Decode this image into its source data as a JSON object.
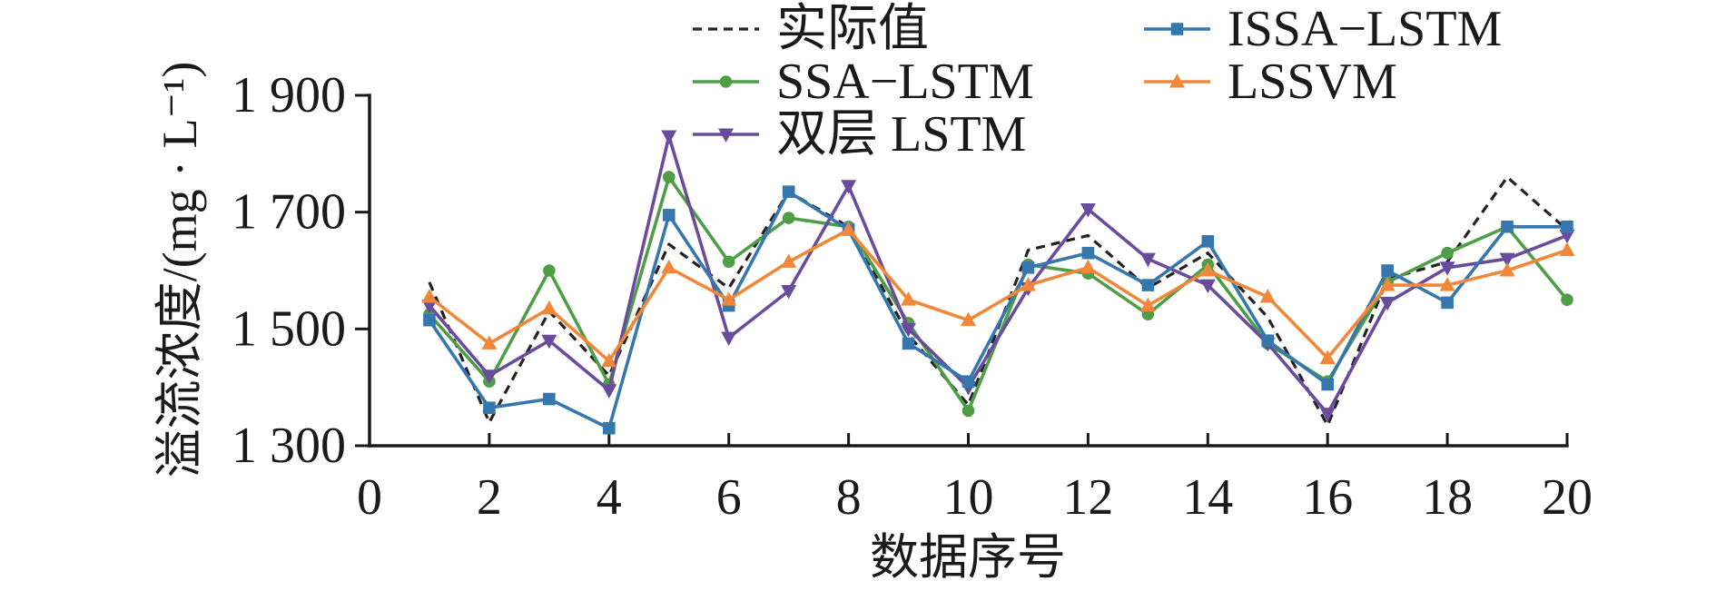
{
  "chart_data": {
    "type": "line",
    "xlabel": "数据序号",
    "ylabel": "溢流浓度/(mg · L⁻¹)",
    "xlim": [
      0,
      20
    ],
    "ylim": [
      1300,
      1900
    ],
    "xticks": [
      0,
      2,
      4,
      6,
      8,
      10,
      12,
      14,
      16,
      18,
      20
    ],
    "xtick_labels": [
      "0",
      "2",
      "4",
      "6",
      "8",
      "10",
      "12",
      "14",
      "16",
      "18",
      "20"
    ],
    "yticks": [
      1300,
      1500,
      1700,
      1900
    ],
    "ytick_labels": [
      "1 300",
      "1 500",
      "1 700",
      "1 900"
    ],
    "grid": false,
    "legend": "top, two columns",
    "x": [
      1,
      2,
      3,
      4,
      5,
      6,
      7,
      8,
      9,
      10,
      11,
      12,
      13,
      14,
      15,
      16,
      17,
      18,
      19,
      20
    ],
    "series": [
      {
        "name": "实际值",
        "color": "#222222",
        "style": "dashed",
        "marker": "none",
        "values": [
          1580,
          1340,
          1530,
          1420,
          1645,
          1570,
          1735,
          1675,
          1490,
          1370,
          1635,
          1660,
          1570,
          1630,
          1520,
          1335,
          1585,
          1615,
          1760,
          1670
        ]
      },
      {
        "name": "SSA−LSTM",
        "color": "#4f9e47",
        "style": "solid",
        "marker": "circle",
        "values": [
          1525,
          1410,
          1600,
          1405,
          1760,
          1615,
          1690,
          1675,
          1510,
          1360,
          1610,
          1595,
          1525,
          1610,
          1475,
          1410,
          1580,
          1630,
          1675,
          1550
        ]
      },
      {
        "name": "双层 LSTM",
        "color": "#6a4c9c",
        "style": "solid",
        "marker": "triangle-down",
        "values": [
          1540,
          1420,
          1480,
          1395,
          1830,
          1485,
          1565,
          1745,
          1500,
          1400,
          1570,
          1705,
          1620,
          1575,
          1475,
          1355,
          1545,
          1605,
          1620,
          1660
        ]
      },
      {
        "name": "ISSA−LSTM",
        "color": "#3677ad",
        "style": "solid",
        "marker": "square",
        "values": [
          1515,
          1365,
          1380,
          1330,
          1695,
          1540,
          1735,
          1670,
          1475,
          1410,
          1605,
          1630,
          1575,
          1650,
          1480,
          1405,
          1600,
          1545,
          1675,
          1675
        ]
      },
      {
        "name": "LSSVM",
        "color": "#f2873a",
        "style": "solid",
        "marker": "triangle-up",
        "values": [
          1555,
          1475,
          1535,
          1445,
          1605,
          1550,
          1615,
          1670,
          1550,
          1515,
          1575,
          1605,
          1540,
          1600,
          1555,
          1450,
          1575,
          1575,
          1600,
          1635
        ]
      }
    ]
  }
}
